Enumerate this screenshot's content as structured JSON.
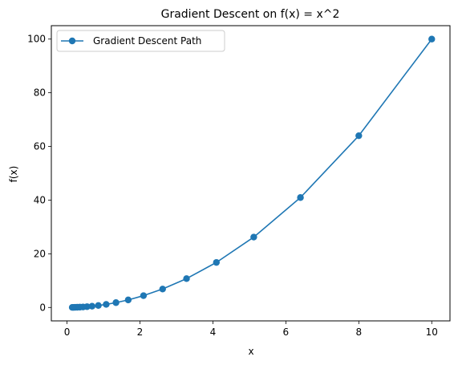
{
  "chart_data": {
    "type": "line",
    "title": "Gradient Descent on f(x) = x^2",
    "xlabel": "x",
    "ylabel": "f(x)",
    "xlim": [
      -0.43,
      10.5
    ],
    "ylim": [
      -5,
      105
    ],
    "x_ticks": [
      0,
      2,
      4,
      6,
      8,
      10
    ],
    "y_ticks": [
      0,
      20,
      40,
      60,
      80,
      100
    ],
    "grid": false,
    "legend_position": "upper-left",
    "series": [
      {
        "name": "Gradient Descent Path",
        "color": "#1f77b4",
        "marker": "circle",
        "x": [
          10.0,
          8.0,
          6.4,
          5.12,
          4.096,
          3.277,
          2.621,
          2.097,
          1.678,
          1.342,
          1.074,
          0.859,
          0.687,
          0.55,
          0.44,
          0.352,
          0.281,
          0.225,
          0.18,
          0.144
        ],
        "y": [
          100.0,
          64.0,
          40.96,
          26.21,
          16.78,
          10.74,
          6.87,
          4.4,
          2.81,
          1.8,
          1.15,
          0.74,
          0.47,
          0.3,
          0.19,
          0.12,
          0.08,
          0.05,
          0.03,
          0.02
        ]
      }
    ]
  }
}
